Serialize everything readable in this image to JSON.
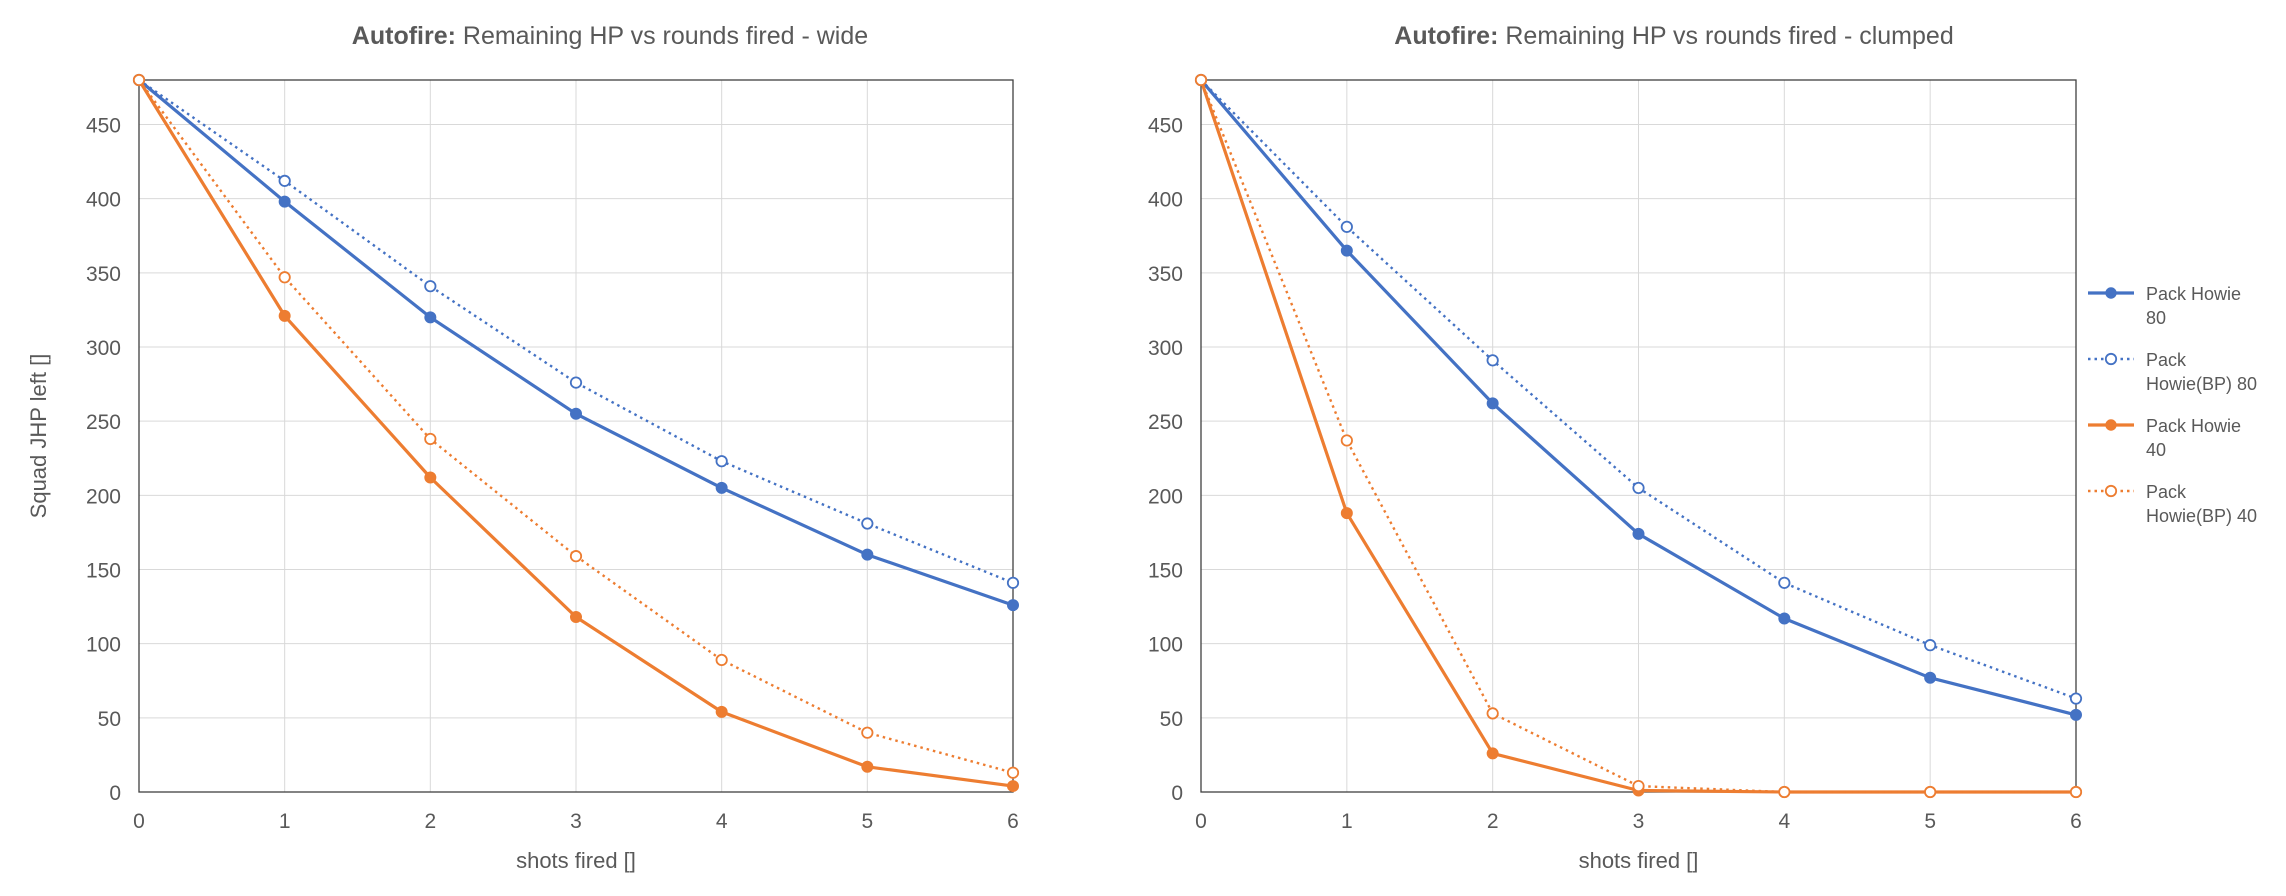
{
  "colors": {
    "blue": "#4472C4",
    "orange": "#ED7D31",
    "grid": "#D9D9D9",
    "axis_text": "#595959"
  },
  "legend": [
    {
      "label_line1": "Pack Howie",
      "label_line2": "80",
      "series_index": 0
    },
    {
      "label_line1": "Pack",
      "label_line2": "Howie(BP) 80",
      "series_index": 1
    },
    {
      "label_line1": "Pack Howie",
      "label_line2": "40",
      "series_index": 2
    },
    {
      "label_line1": "Pack",
      "label_line2": "Howie(BP) 40",
      "series_index": 3
    }
  ],
  "chart_data": [
    {
      "type": "line",
      "title_bold": "Autofire:",
      "title_rest": " Remaining HP vs rounds fired - wide",
      "xlabel": "shots fired []",
      "ylabel": "Squad JHP left []",
      "x": [
        0,
        1,
        2,
        3,
        4,
        5,
        6
      ],
      "xlim": [
        0,
        6
      ],
      "ylim": [
        0,
        480
      ],
      "yticks": [
        0,
        50,
        100,
        150,
        200,
        250,
        300,
        350,
        400,
        450
      ],
      "grid": true,
      "series": [
        {
          "name": "Pack Howie 80",
          "color": "blue",
          "dashed": false,
          "filled": true,
          "values": [
            480,
            398,
            320,
            255,
            205,
            160,
            126
          ]
        },
        {
          "name": "Pack Howie(BP) 80",
          "color": "blue",
          "dashed": true,
          "filled": false,
          "values": [
            480,
            412,
            341,
            276,
            223,
            181,
            141
          ]
        },
        {
          "name": "Pack Howie 40",
          "color": "orange",
          "dashed": false,
          "filled": true,
          "values": [
            480,
            321,
            212,
            118,
            54,
            17,
            4
          ]
        },
        {
          "name": "Pack Howie(BP) 40",
          "color": "orange",
          "dashed": true,
          "filled": false,
          "values": [
            480,
            347,
            238,
            159,
            89,
            40,
            13
          ]
        }
      ]
    },
    {
      "type": "line",
      "title_bold": "Autofire:",
      "title_rest": " Remaining HP vs rounds fired - clumped",
      "xlabel": "shots fired []",
      "ylabel": "",
      "x": [
        0,
        1,
        2,
        3,
        4,
        5,
        6
      ],
      "xlim": [
        0,
        6
      ],
      "ylim": [
        0,
        480
      ],
      "yticks": [
        0,
        50,
        100,
        150,
        200,
        250,
        300,
        350,
        400,
        450
      ],
      "grid": true,
      "legend_position": "right",
      "series": [
        {
          "name": "Pack Howie 80",
          "color": "blue",
          "dashed": false,
          "filled": true,
          "values": [
            480,
            365,
            262,
            174,
            117,
            77,
            52
          ]
        },
        {
          "name": "Pack Howie(BP) 80",
          "color": "blue",
          "dashed": true,
          "filled": false,
          "values": [
            480,
            381,
            291,
            205,
            141,
            99,
            63
          ]
        },
        {
          "name": "Pack Howie 40",
          "color": "orange",
          "dashed": false,
          "filled": true,
          "values": [
            480,
            188,
            26,
            1,
            0,
            0,
            0
          ]
        },
        {
          "name": "Pack Howie(BP) 40",
          "color": "orange",
          "dashed": true,
          "filled": false,
          "values": [
            480,
            237,
            53,
            4,
            0,
            0,
            0
          ]
        }
      ]
    }
  ]
}
